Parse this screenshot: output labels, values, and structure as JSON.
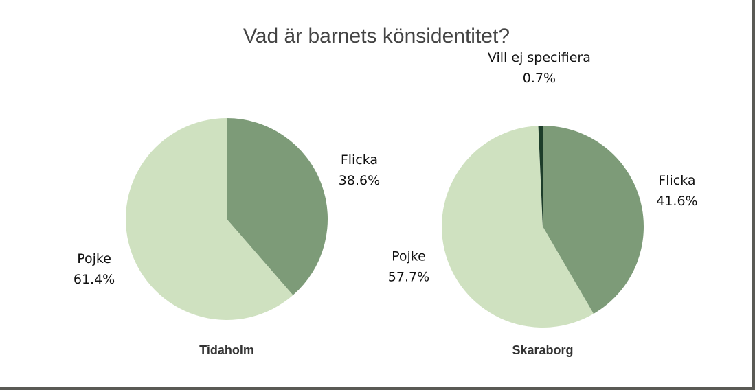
{
  "title": "Vad är barnets könsidentitet?",
  "chart_data": [
    {
      "type": "pie",
      "title": "Tidaholm",
      "categories": [
        "Flicka",
        "Pojke"
      ],
      "values": [
        38.6,
        61.4
      ],
      "value_labels": [
        "38.6%",
        "61.4%"
      ],
      "colors": [
        "#7d9b78",
        "#cfe1c0"
      ]
    },
    {
      "type": "pie",
      "title": "Skaraborg",
      "categories": [
        "Flicka",
        "Pojke",
        "Vill ej specifiera"
      ],
      "values": [
        41.6,
        57.7,
        0.7
      ],
      "value_labels": [
        "41.6%",
        "57.7%",
        "0.7%"
      ],
      "colors": [
        "#7d9b78",
        "#cfe1c0",
        "#1d3d2a"
      ]
    }
  ]
}
